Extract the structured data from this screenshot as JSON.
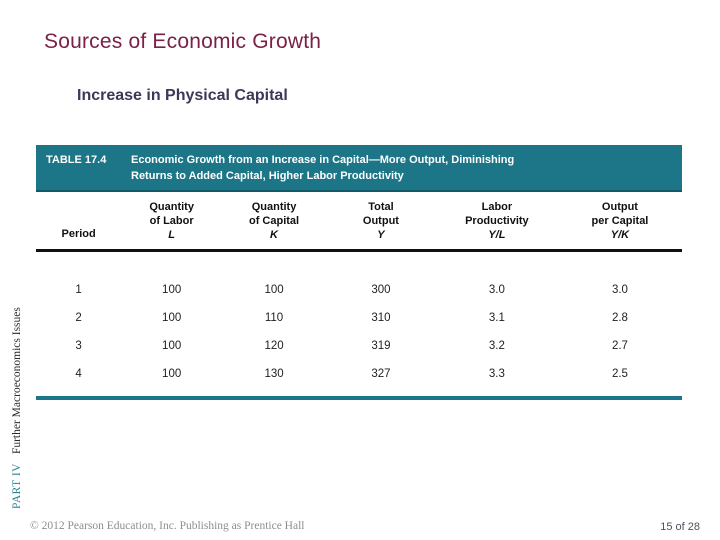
{
  "slide": {
    "title": "Sources of Economic Growth",
    "subtitle": "Increase in Physical Capital"
  },
  "sidebar": {
    "part_label": "PART IV",
    "series_label": "Further Macroeconomics Issues"
  },
  "table": {
    "label": "TABLE 17.4",
    "caption_line1": "Economic Growth from an Increase in Capital—More Output, Diminishing",
    "caption_line2": "Returns to Added Capital, Higher Labor Productivity",
    "columns": [
      {
        "title": "Period",
        "var": ""
      },
      {
        "title": "Quantity\nof Labor",
        "var": "L"
      },
      {
        "title": "Quantity\nof Capital",
        "var": "K"
      },
      {
        "title": "Total\nOutput",
        "var": "Y"
      },
      {
        "title": "Labor\nProductivity",
        "var": "Y/L"
      },
      {
        "title": "Output\nper Capital",
        "var": "Y/K"
      }
    ],
    "rows": [
      [
        "1",
        "100",
        "100",
        "300",
        "3.0",
        "3.0"
      ],
      [
        "2",
        "100",
        "110",
        "310",
        "3.1",
        "2.8"
      ],
      [
        "3",
        "100",
        "120",
        "319",
        "3.2",
        "2.7"
      ],
      [
        "4",
        "100",
        "130",
        "327",
        "3.3",
        "2.5"
      ]
    ]
  },
  "chart_data": {
    "type": "table",
    "title": "TABLE 17.4 Economic Growth from an Increase in Capital—More Output, Diminishing Returns to Added Capital, Higher Labor Productivity",
    "columns": [
      "Period",
      "Quantity of Labor L",
      "Quantity of Capital K",
      "Total Output Y",
      "Labor Productivity Y/L",
      "Output per Capital Y/K"
    ],
    "rows": [
      [
        1,
        100,
        100,
        300,
        3.0,
        3.0
      ],
      [
        2,
        100,
        110,
        310,
        3.1,
        2.8
      ],
      [
        3,
        100,
        120,
        319,
        3.2,
        2.7
      ],
      [
        4,
        100,
        130,
        327,
        3.3,
        2.5
      ]
    ]
  },
  "footer": {
    "copyright": "© 2012 Pearson Education, Inc. Publishing as Prentice Hall",
    "page": "15 of 28"
  },
  "colors": {
    "table_bar_teal": "#1C7687",
    "title_maroon": "#7A2148",
    "subtitle_purple": "#3E3858",
    "sidebar_teal": "#2A8495"
  }
}
